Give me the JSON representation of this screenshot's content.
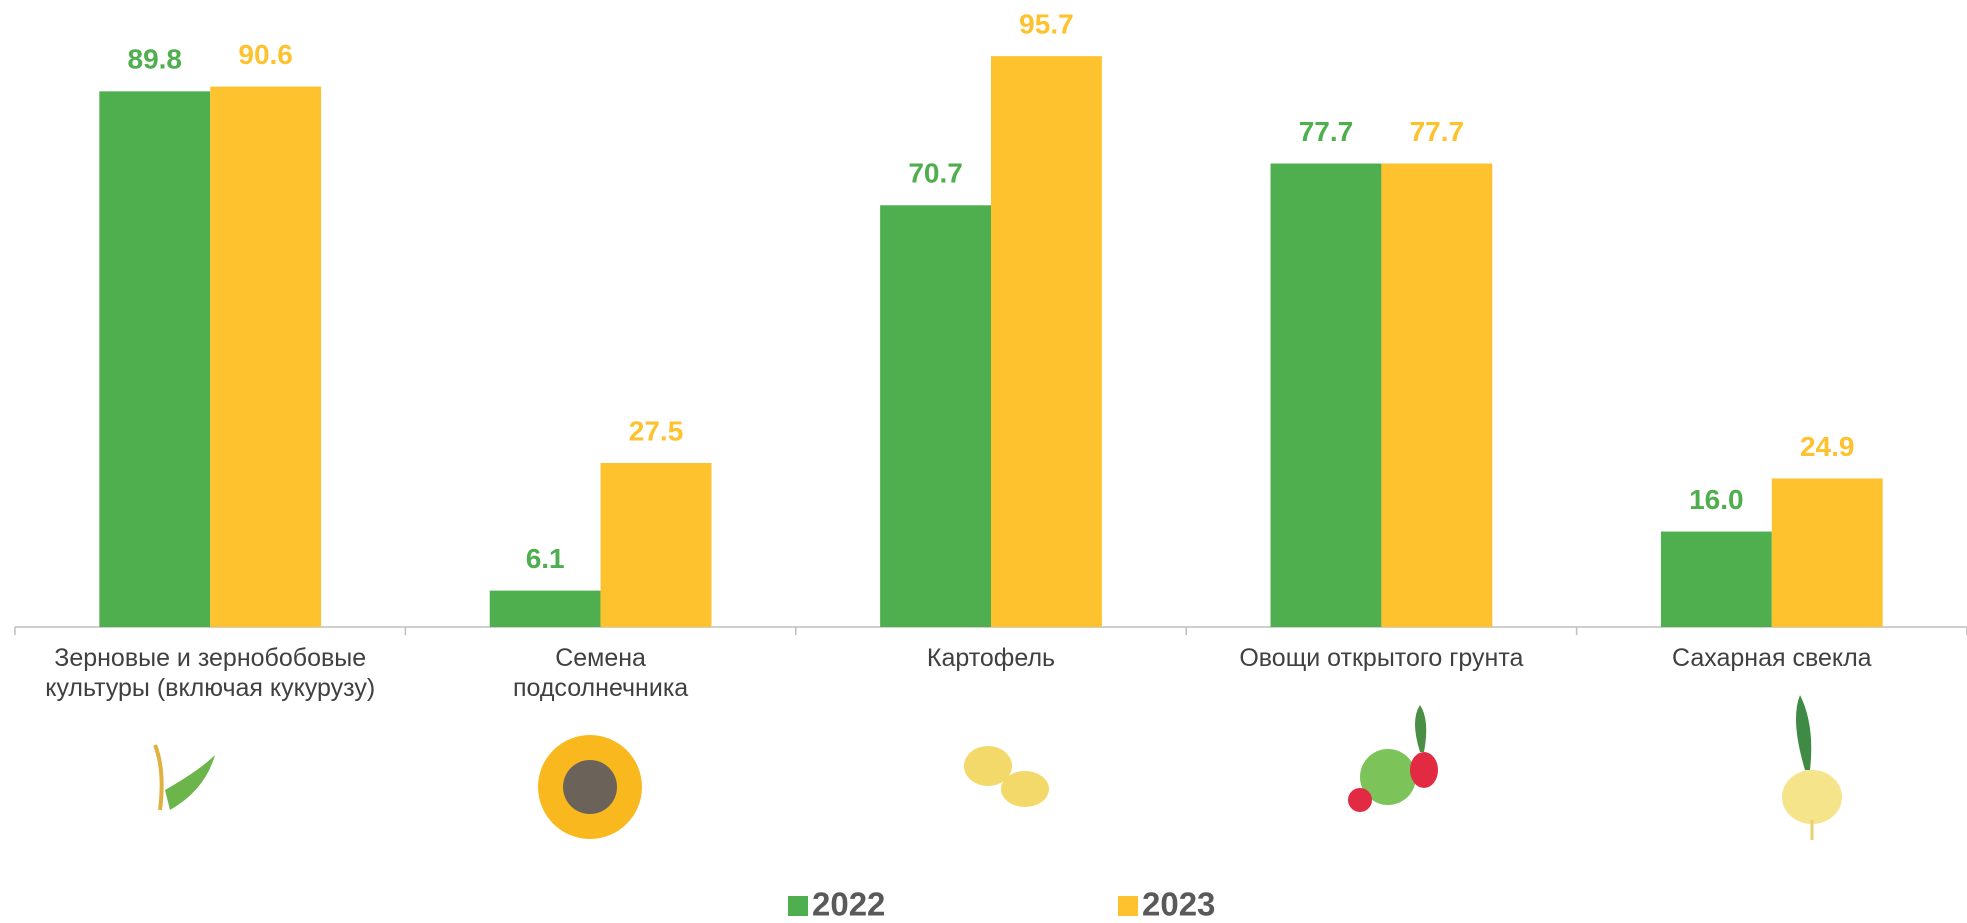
{
  "chart_data": {
    "type": "bar",
    "categories": [
      "Зерновые и зернобобовые\nкультуры (включая кукурузу)",
      "Семена\nподсолнечника",
      "Картофель",
      "Овощи открытого грунта",
      "Сахарная свекла"
    ],
    "series": [
      {
        "name": "2022",
        "color": "#4fae4e",
        "values": [
          89.8,
          6.1,
          70.7,
          77.7,
          16.0
        ],
        "value_labels": [
          "89.8",
          "6.1",
          "70.7",
          "77.7",
          "16.0"
        ]
      },
      {
        "name": "2023",
        "color": "#fdc22d",
        "values": [
          90.6,
          27.5,
          95.7,
          77.7,
          24.9
        ],
        "value_labels": [
          "90.6",
          "27.5",
          "95.7",
          "77.7",
          "24.9"
        ]
      }
    ],
    "ylim": [
      0,
      100
    ],
    "legend": "bottom"
  }
}
